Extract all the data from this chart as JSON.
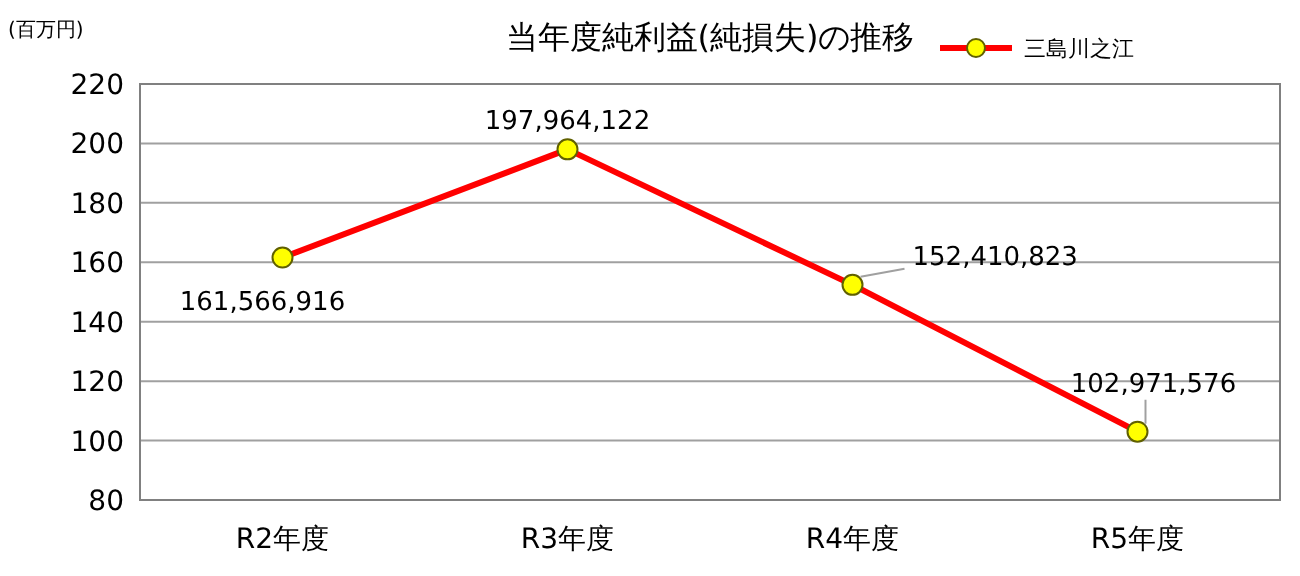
{
  "chart_data": {
    "type": "line",
    "title": "当年度純利益(純損失)の推移",
    "ylabel": "(百万円)",
    "categories": [
      "R2年度",
      "R3年度",
      "R4年度",
      "R5年度"
    ],
    "series": [
      {
        "name": "三島川之江",
        "color": "#ff0000",
        "values": [
          161.6,
          198.0,
          152.4,
          103.0
        ]
      }
    ],
    "annotations": [
      {
        "text": "161,566,916",
        "x": "R2年度",
        "y": 161.566916
      },
      {
        "text": "197,964,122",
        "x": "R3年度",
        "y": 197.964122
      },
      {
        "text": "152,410,823",
        "x": "R4年度",
        "y": 152.410823
      },
      {
        "text": "102,971,576",
        "x": "R5年度",
        "y": 102.971576
      }
    ],
    "ylim": [
      80,
      220
    ],
    "yticks": [
      80,
      100,
      120,
      140,
      160,
      180,
      200,
      220
    ],
    "grid": "y",
    "legend": "top right",
    "marker": "circle",
    "line_style": "solid"
  }
}
